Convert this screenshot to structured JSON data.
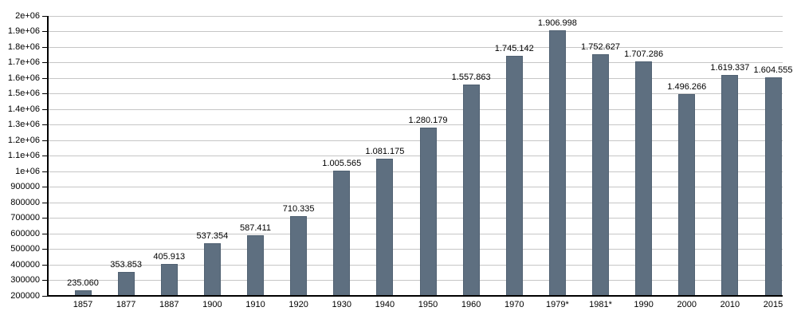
{
  "chart_data": {
    "type": "bar",
    "title": "",
    "xlabel": "",
    "ylabel": "",
    "categories": [
      "1857",
      "1877",
      "1887",
      "1900",
      "1910",
      "1920",
      "1930",
      "1940",
      "1950",
      "1960",
      "1970",
      "1979*",
      "1981*",
      "1990",
      "2000",
      "2010",
      "2015"
    ],
    "values": [
      235060,
      353853,
      405913,
      537354,
      587411,
      710335,
      1005565,
      1081175,
      1280179,
      1557863,
      1745142,
      1906998,
      1752627,
      1707286,
      1496266,
      1619337,
      1604555
    ],
    "value_labels": [
      "235.060",
      "353.853",
      "405.913",
      "537.354",
      "587.411",
      "710.335",
      "1.005.565",
      "1.081.175",
      "1.280.179",
      "1.557.863",
      "1.745.142",
      "1.906.998",
      "1.752.627",
      "1.707.286",
      "1.496.266",
      "1.619.337",
      "1.604.555"
    ],
    "ylim": [
      200000,
      2000000
    ],
    "ytick_step": 100000,
    "ytick_labels": [
      "200000",
      "300000",
      "400000",
      "500000",
      "600000",
      "700000",
      "800000",
      "900000",
      "1e+06",
      "1.1e+06",
      "1.2e+06",
      "1.3e+06",
      "1.4e+06",
      "1.5e+06",
      "1.6e+06",
      "1.7e+06",
      "1.8e+06",
      "1.9e+06",
      "2e+06"
    ],
    "grid": true,
    "legend_position": "none",
    "bar_color": "#5e6f80",
    "grid_color": "#c6c6c6",
    "axis_color": "#000000",
    "label_color": "#000000",
    "background_color": "#ffffff"
  }
}
